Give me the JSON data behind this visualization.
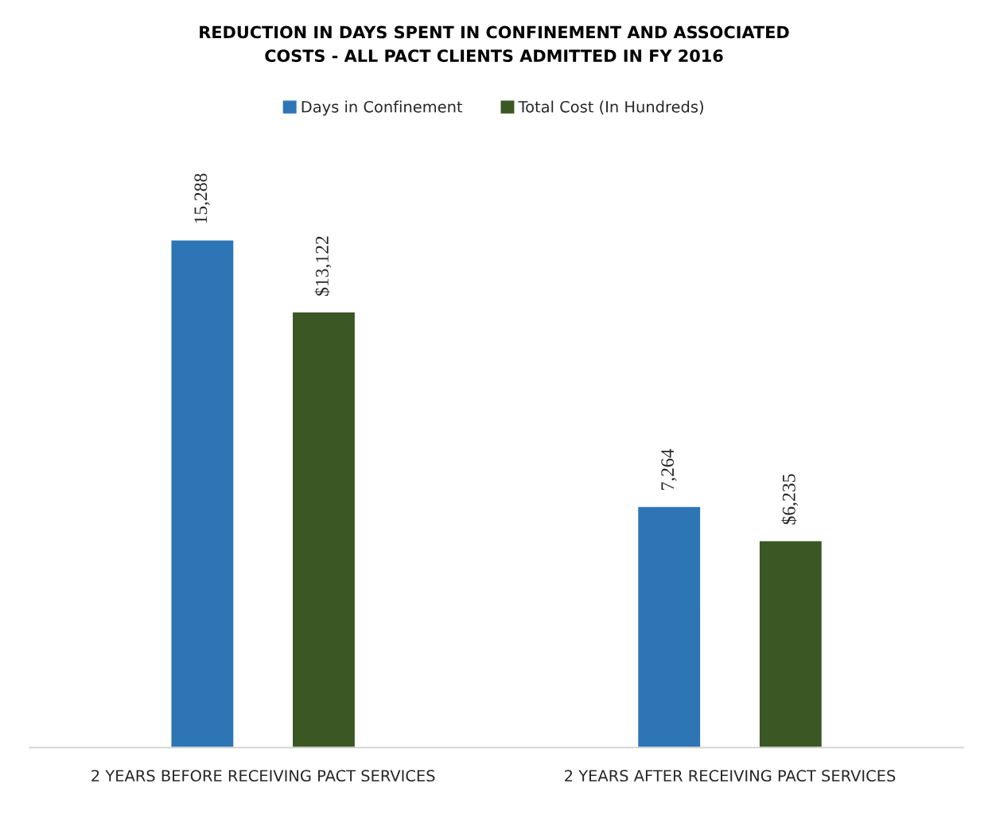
{
  "chart_data": {
    "type": "bar",
    "title": "REDUCTION IN DAYS SPENT IN CONFINEMENT AND ASSOCIATED\nCOSTS - ALL PACT CLIENTS ADMITTED IN FY 2016",
    "categories": [
      "2 YEARS BEFORE RECEIVING PACT SERVICES",
      "2 YEARS AFTER RECEIVING PACT SERVICES"
    ],
    "series": [
      {
        "name": "Days in Confinement",
        "color": "#2e75b6",
        "values": [
          15288,
          7264
        ],
        "value_labels": [
          "15,288",
          "7,264"
        ]
      },
      {
        "name": "Total Cost (In Hundreds)",
        "color": "#3a5724",
        "values": [
          13122,
          6235
        ],
        "value_labels": [
          "$13,122",
          "$6,235"
        ]
      }
    ],
    "legend": "top",
    "grid": false,
    "tick_labels": "x"
  }
}
